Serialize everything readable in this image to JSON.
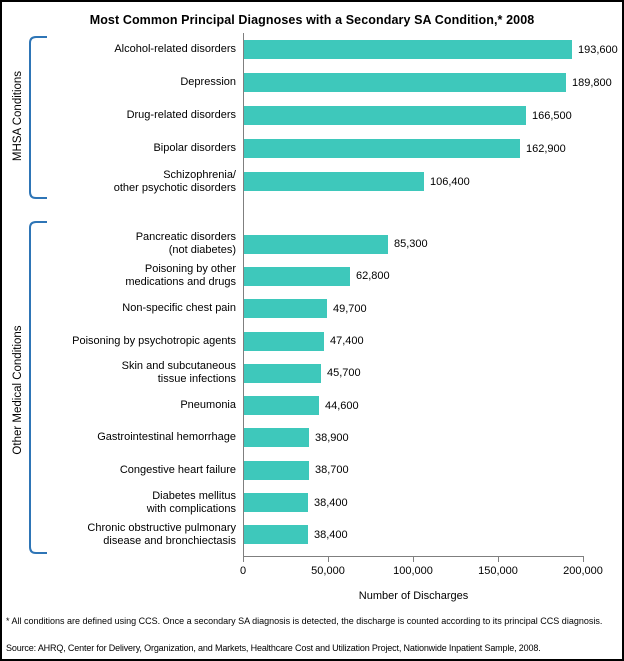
{
  "title": "Most Common Principal Diagnoses with a Secondary SA Condition,* 2008",
  "footnote": "* All conditions are defined using CCS.  Once a secondary SA diagnosis is detected, the discharge is counted according to its principal CCS diagnosis.",
  "source": "Source: AHRQ, Center for Delivery, Organization, and Markets, Healthcare Cost and Utilization Project, Nationwide Inpatient Sample, 2008.",
  "chart_data": {
    "type": "bar",
    "orientation": "horizontal",
    "title": "Most Common Principal Diagnoses with a Secondary SA Condition,* 2008",
    "xlabel": "Number of Discharges",
    "ylabel": "",
    "xlim": [
      0,
      200000
    ],
    "xticks": [
      0,
      50000,
      100000,
      150000,
      200000
    ],
    "xtick_labels": [
      "0",
      "50,000",
      "100,000",
      "150,000",
      "200,000"
    ],
    "grid": false,
    "bar_color": "#3EC8BB",
    "bracket_color": "#2E75B6",
    "axis_color": "#7f7f7f",
    "groups": [
      {
        "label": "MHSA Conditions",
        "items": [
          {
            "category": "Alcohol-related disorders",
            "lines": [
              "Alcohol-related disorders"
            ],
            "value": 193600,
            "value_label": "193,600"
          },
          {
            "category": "Depression",
            "lines": [
              "Depression"
            ],
            "value": 189800,
            "value_label": "189,800"
          },
          {
            "category": "Drug-related disorders",
            "lines": [
              "Drug-related disorders"
            ],
            "value": 166500,
            "value_label": "166,500"
          },
          {
            "category": "Bipolar disorders",
            "lines": [
              "Bipolar disorders"
            ],
            "value": 162900,
            "value_label": "162,900"
          },
          {
            "category": "Schizophrenia/other psychotic disorders",
            "lines": [
              "Schizophrenia/",
              "other psychotic disorders"
            ],
            "value": 106400,
            "value_label": "106,400"
          }
        ]
      },
      {
        "label": "Other Medical Conditions",
        "items": [
          {
            "category": "Pancreatic disorders (not diabetes)",
            "lines": [
              "Pancreatic disorders",
              "(not diabetes)"
            ],
            "value": 85300,
            "value_label": "85,300"
          },
          {
            "category": "Poisoning by other medications and drugs",
            "lines": [
              "Poisoning by other",
              "medications and drugs"
            ],
            "value": 62800,
            "value_label": "62,800"
          },
          {
            "category": "Non-specific chest pain",
            "lines": [
              "Non-specific chest pain"
            ],
            "value": 49700,
            "value_label": "49,700"
          },
          {
            "category": "Poisoning by psychotropic agents",
            "lines": [
              "Poisoning by psychotropic agents"
            ],
            "value": 47400,
            "value_label": "47,400"
          },
          {
            "category": "Skin and subcutaneous tissue infections",
            "lines": [
              "Skin and subcutaneous",
              "tissue infections"
            ],
            "value": 45700,
            "value_label": "45,700"
          },
          {
            "category": "Pneumonia",
            "lines": [
              "Pneumonia"
            ],
            "value": 44600,
            "value_label": "44,600"
          },
          {
            "category": "Gastrointestinal hemorrhage",
            "lines": [
              "Gastrointestinal hemorrhage"
            ],
            "value": 38900,
            "value_label": "38,900"
          },
          {
            "category": "Congestive heart failure",
            "lines": [
              "Congestive heart failure"
            ],
            "value": 38700,
            "value_label": "38,700"
          },
          {
            "category": "Diabetes mellitus with complications",
            "lines": [
              "Diabetes mellitus",
              "with complications"
            ],
            "value": 38400,
            "value_label": "38,400"
          },
          {
            "category": "Chronic obstructive pulmonary disease and bronchiectasis",
            "lines": [
              "Chronic obstructive pulmonary",
              "disease and bronchiectasis"
            ],
            "value": 38400,
            "value_label": "38,400"
          }
        ]
      }
    ]
  }
}
